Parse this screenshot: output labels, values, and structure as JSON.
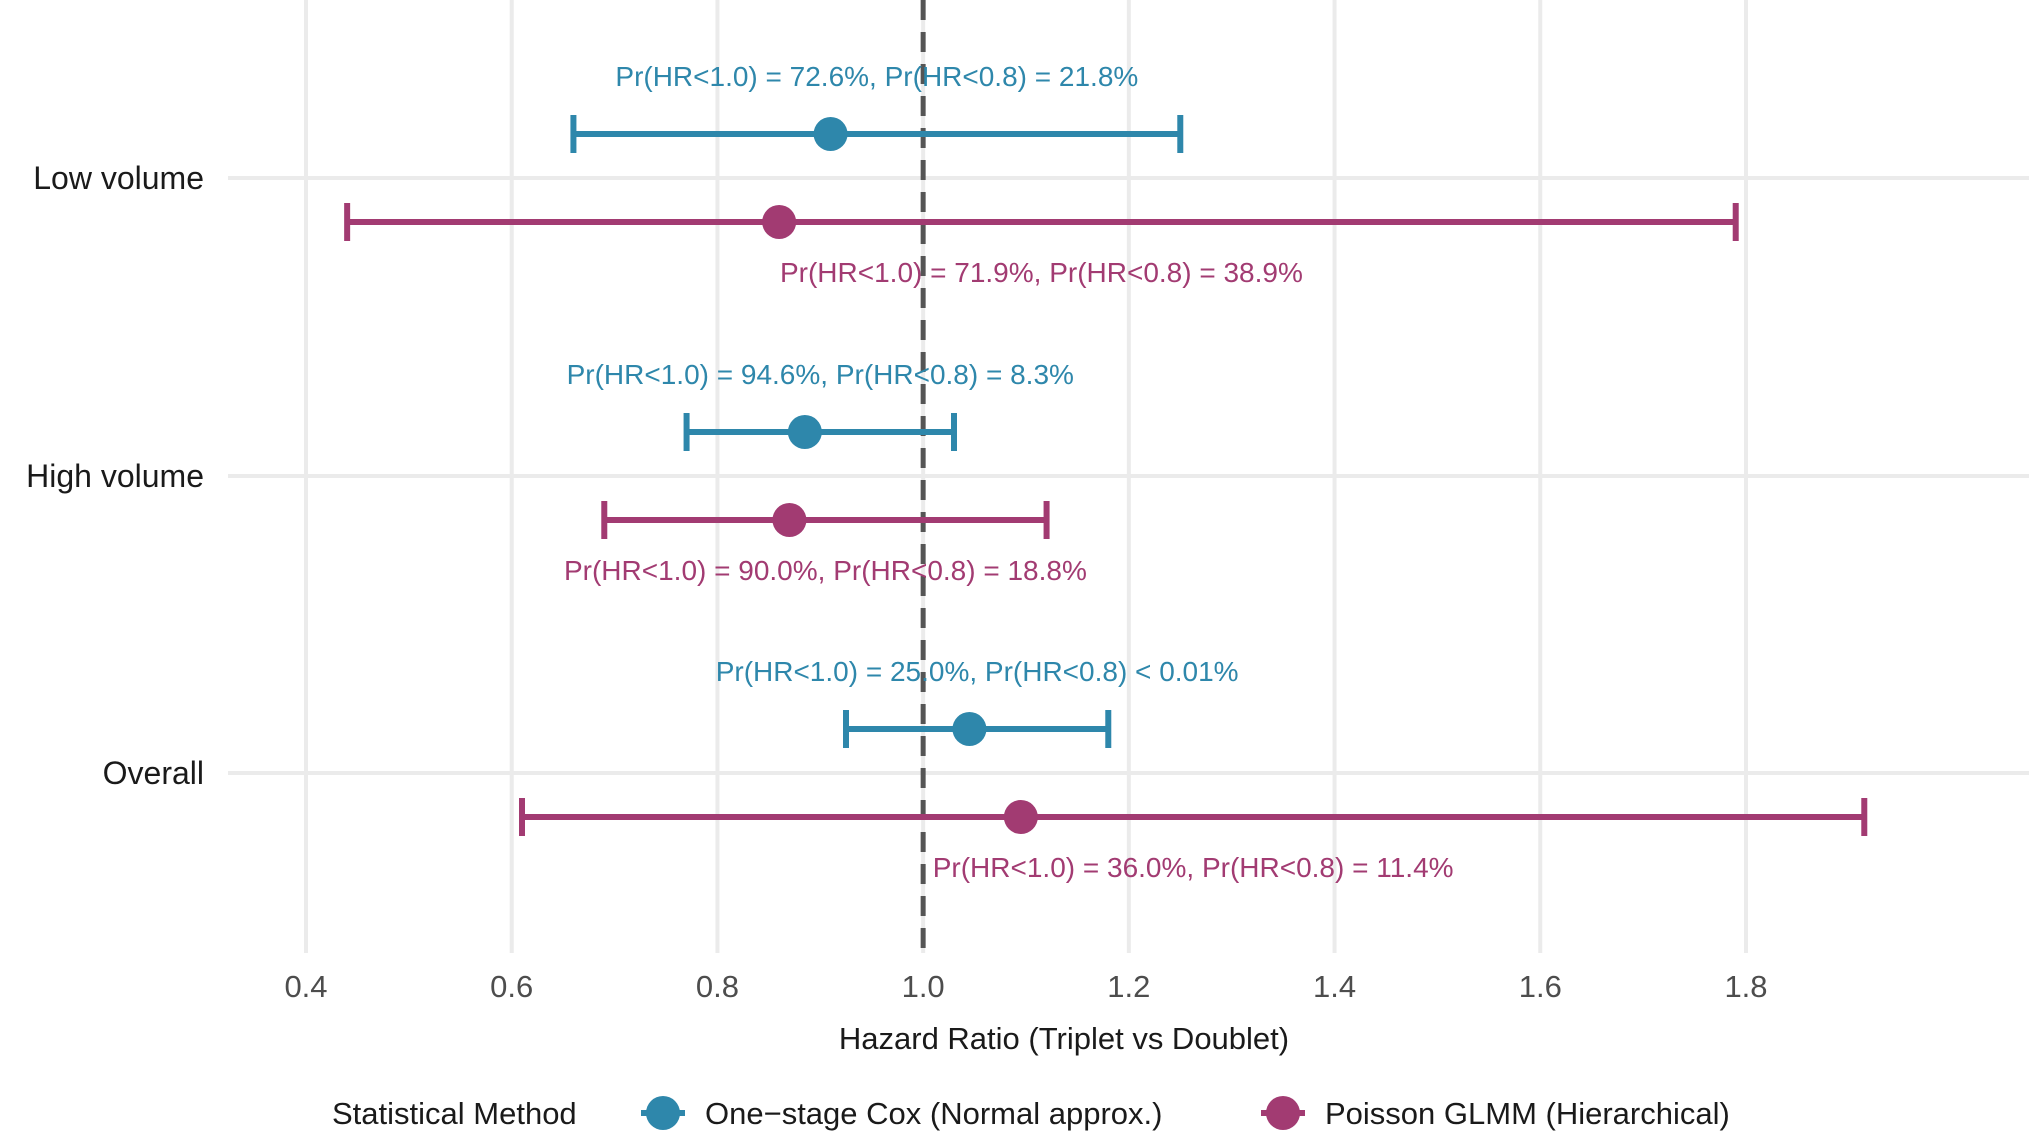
{
  "chart_data": {
    "type": "forest",
    "xlabel": "Hazard Ratio (Triplet vs Doublet)",
    "ylabel": "",
    "xlim": [
      0.35,
      2.0
    ],
    "x_ticks": [
      "0.4",
      "0.6",
      "0.8",
      "1.0",
      "1.2",
      "1.4",
      "1.6",
      "1.8"
    ],
    "reference_line": 1.0,
    "categories": [
      "Low volume",
      "High volume",
      "Overall"
    ],
    "legend": {
      "title": "Statistical Method",
      "position": "bottom"
    },
    "series": [
      {
        "name": "One−stage Cox (Normal approx.)",
        "color": "#2e87ab",
        "points": [
          {
            "category": "Low volume",
            "estimate": 0.91,
            "lower": 0.66,
            "upper": 1.25,
            "annotation": "Pr(HR<1.0) = 72.6%, Pr(HR<0.8) = 21.8%"
          },
          {
            "category": "High volume",
            "estimate": 0.885,
            "lower": 0.77,
            "upper": 1.03,
            "annotation": "Pr(HR<1.0) = 94.6%, Pr(HR<0.8) = 8.3%"
          },
          {
            "category": "Overall",
            "estimate": 1.045,
            "lower": 0.925,
            "upper": 1.18,
            "annotation": "Pr(HR<1.0) = 25.0%, Pr(HR<0.8) < 0.01%"
          }
        ]
      },
      {
        "name": "Poisson GLMM (Hierarchical)",
        "color": "#a23b72",
        "points": [
          {
            "category": "Low volume",
            "estimate": 0.86,
            "lower": 0.44,
            "upper": 1.79,
            "annotation": "Pr(HR<1.0) = 71.9%, Pr(HR<0.8) = 38.9%"
          },
          {
            "category": "High volume",
            "estimate": 0.87,
            "lower": 0.69,
            "upper": 1.12,
            "annotation": "Pr(HR<1.0) = 90.0%, Pr(HR<0.8) = 18.8%"
          },
          {
            "category": "Overall",
            "estimate": 1.095,
            "lower": 0.61,
            "upper": 1.915,
            "annotation": "Pr(HR<1.0) = 36.0%, Pr(HR<0.8) = 11.4%"
          }
        ]
      }
    ]
  }
}
